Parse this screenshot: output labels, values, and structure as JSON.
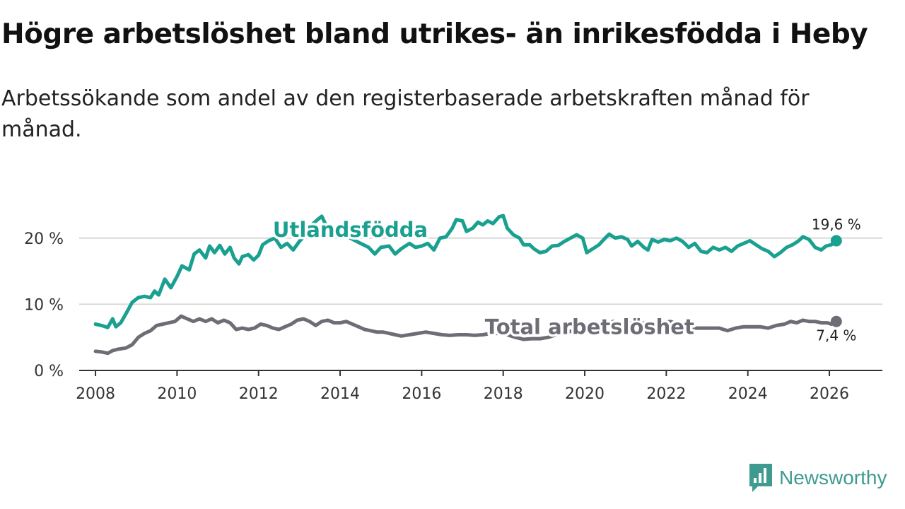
{
  "title": "Högre arbetslöshet bland utrikes- än inrikesfödda i Heby",
  "subtitle": "Arbetssökande som andel av den registerbaserade arbetskraften månad för månad.",
  "brand": {
    "name": "Newsworthy",
    "color": "#3f9b8f"
  },
  "chart_data": {
    "type": "line",
    "title": "Högre arbetslöshet bland utrikes- än inrikesfödda i Heby",
    "subtitle": "Arbetssökande som andel av den registerbaserade arbetskraften månad för månad.",
    "xlabel": "",
    "ylabel": "",
    "xlim": [
      2007.6,
      2027.3
    ],
    "ylim": [
      0,
      25
    ],
    "x_ticks": [
      2008,
      2010,
      2012,
      2014,
      2016,
      2018,
      2020,
      2022,
      2024,
      2026
    ],
    "x_tick_labels": [
      "2008",
      "2010",
      "2012",
      "2014",
      "2016",
      "2018",
      "2020",
      "2022",
      "2024",
      "2026"
    ],
    "y_ticks": [
      0,
      10,
      20
    ],
    "y_tick_labels": [
      "0 %",
      "10 %",
      "20 %"
    ],
    "grid": true,
    "series": [
      {
        "name": "Utlandsfödda",
        "color": "#1aa090",
        "end_label": "19,6 %",
        "points": [
          [
            2008.0,
            7.0
          ],
          [
            2008.15,
            6.8
          ],
          [
            2008.3,
            6.5
          ],
          [
            2008.42,
            7.8
          ],
          [
            2008.5,
            6.6
          ],
          [
            2008.62,
            7.2
          ],
          [
            2008.75,
            8.6
          ],
          [
            2008.9,
            10.3
          ],
          [
            2009.05,
            11.0
          ],
          [
            2009.2,
            11.2
          ],
          [
            2009.35,
            11.0
          ],
          [
            2009.45,
            12.0
          ],
          [
            2009.55,
            11.4
          ],
          [
            2009.7,
            13.8
          ],
          [
            2009.85,
            12.5
          ],
          [
            2010.0,
            14.2
          ],
          [
            2010.12,
            15.8
          ],
          [
            2010.3,
            15.2
          ],
          [
            2010.42,
            17.6
          ],
          [
            2010.55,
            18.2
          ],
          [
            2010.7,
            17.0
          ],
          [
            2010.8,
            18.8
          ],
          [
            2010.92,
            17.8
          ],
          [
            2011.05,
            18.9
          ],
          [
            2011.17,
            17.6
          ],
          [
            2011.3,
            18.6
          ],
          [
            2011.4,
            17.0
          ],
          [
            2011.52,
            16.1
          ],
          [
            2011.6,
            17.2
          ],
          [
            2011.75,
            17.5
          ],
          [
            2011.88,
            16.7
          ],
          [
            2012.0,
            17.4
          ],
          [
            2012.1,
            19.0
          ],
          [
            2012.25,
            19.6
          ],
          [
            2012.4,
            20.0
          ],
          [
            2012.55,
            18.6
          ],
          [
            2012.7,
            19.2
          ],
          [
            2012.85,
            18.2
          ],
          [
            2013.0,
            19.5
          ],
          [
            2013.15,
            20.5
          ],
          [
            2013.3,
            22.0
          ],
          [
            2013.45,
            22.8
          ],
          [
            2013.55,
            23.3
          ],
          [
            2013.65,
            22.0
          ],
          [
            2013.8,
            21.8
          ],
          [
            2013.95,
            20.4
          ],
          [
            2014.1,
            21.0
          ],
          [
            2014.25,
            20.0
          ],
          [
            2014.5,
            19.2
          ],
          [
            2014.7,
            18.6
          ],
          [
            2014.85,
            17.6
          ],
          [
            2015.0,
            18.6
          ],
          [
            2015.2,
            18.8
          ],
          [
            2015.35,
            17.6
          ],
          [
            2015.5,
            18.4
          ],
          [
            2015.7,
            19.2
          ],
          [
            2015.85,
            18.6
          ],
          [
            2016.0,
            18.8
          ],
          [
            2016.15,
            19.2
          ],
          [
            2016.3,
            18.2
          ],
          [
            2016.45,
            20.0
          ],
          [
            2016.6,
            20.2
          ],
          [
            2016.75,
            21.5
          ],
          [
            2016.85,
            22.8
          ],
          [
            2017.0,
            22.6
          ],
          [
            2017.1,
            21.0
          ],
          [
            2017.25,
            21.5
          ],
          [
            2017.38,
            22.4
          ],
          [
            2017.5,
            22.0
          ],
          [
            2017.62,
            22.6
          ],
          [
            2017.75,
            22.2
          ],
          [
            2017.9,
            23.2
          ],
          [
            2018.0,
            23.4
          ],
          [
            2018.1,
            21.5
          ],
          [
            2018.25,
            20.5
          ],
          [
            2018.4,
            20.0
          ],
          [
            2018.5,
            19.0
          ],
          [
            2018.65,
            19.0
          ],
          [
            2018.75,
            18.4
          ],
          [
            2018.9,
            17.8
          ],
          [
            2019.05,
            18.0
          ],
          [
            2019.2,
            18.8
          ],
          [
            2019.35,
            18.9
          ],
          [
            2019.5,
            19.5
          ],
          [
            2019.65,
            20.0
          ],
          [
            2019.8,
            20.5
          ],
          [
            2019.95,
            20.0
          ],
          [
            2020.05,
            17.8
          ],
          [
            2020.2,
            18.4
          ],
          [
            2020.35,
            19.0
          ],
          [
            2020.5,
            20.0
          ],
          [
            2020.6,
            20.6
          ],
          [
            2020.75,
            20.0
          ],
          [
            2020.9,
            20.2
          ],
          [
            2021.05,
            19.8
          ],
          [
            2021.15,
            18.8
          ],
          [
            2021.3,
            19.5
          ],
          [
            2021.45,
            18.6
          ],
          [
            2021.55,
            18.2
          ],
          [
            2021.65,
            19.8
          ],
          [
            2021.8,
            19.4
          ],
          [
            2021.95,
            19.8
          ],
          [
            2022.1,
            19.6
          ],
          [
            2022.25,
            20.0
          ],
          [
            2022.4,
            19.5
          ],
          [
            2022.55,
            18.6
          ],
          [
            2022.7,
            19.2
          ],
          [
            2022.85,
            18.0
          ],
          [
            2023.0,
            17.8
          ],
          [
            2023.15,
            18.6
          ],
          [
            2023.3,
            18.2
          ],
          [
            2023.45,
            18.6
          ],
          [
            2023.6,
            18.0
          ],
          [
            2023.75,
            18.8
          ],
          [
            2023.9,
            19.2
          ],
          [
            2024.05,
            19.6
          ],
          [
            2024.2,
            19.0
          ],
          [
            2024.35,
            18.4
          ],
          [
            2024.5,
            18.0
          ],
          [
            2024.65,
            17.2
          ],
          [
            2024.8,
            17.8
          ],
          [
            2024.95,
            18.6
          ],
          [
            2025.1,
            19.0
          ],
          [
            2025.25,
            19.6
          ],
          [
            2025.35,
            20.2
          ],
          [
            2025.5,
            19.8
          ],
          [
            2025.65,
            18.6
          ],
          [
            2025.8,
            18.2
          ],
          [
            2025.92,
            18.8
          ],
          [
            2026.05,
            19.0
          ],
          [
            2026.17,
            19.6
          ]
        ]
      },
      {
        "name": "Total arbetslöshet",
        "color": "#6e6d75",
        "end_label": "7,4 %",
        "points": [
          [
            2008.0,
            2.9
          ],
          [
            2008.15,
            2.8
          ],
          [
            2008.3,
            2.6
          ],
          [
            2008.42,
            3.0
          ],
          [
            2008.55,
            3.2
          ],
          [
            2008.75,
            3.4
          ],
          [
            2008.9,
            3.9
          ],
          [
            2009.05,
            5.0
          ],
          [
            2009.2,
            5.6
          ],
          [
            2009.35,
            6.0
          ],
          [
            2009.5,
            6.8
          ],
          [
            2009.65,
            7.0
          ],
          [
            2009.8,
            7.2
          ],
          [
            2009.95,
            7.4
          ],
          [
            2010.1,
            8.2
          ],
          [
            2010.25,
            7.8
          ],
          [
            2010.4,
            7.4
          ],
          [
            2010.55,
            7.8
          ],
          [
            2010.7,
            7.4
          ],
          [
            2010.85,
            7.8
          ],
          [
            2011.0,
            7.2
          ],
          [
            2011.15,
            7.6
          ],
          [
            2011.3,
            7.2
          ],
          [
            2011.45,
            6.2
          ],
          [
            2011.6,
            6.4
          ],
          [
            2011.75,
            6.2
          ],
          [
            2011.9,
            6.4
          ],
          [
            2012.05,
            7.0
          ],
          [
            2012.2,
            6.8
          ],
          [
            2012.35,
            6.4
          ],
          [
            2012.5,
            6.2
          ],
          [
            2012.65,
            6.6
          ],
          [
            2012.8,
            7.0
          ],
          [
            2012.95,
            7.6
          ],
          [
            2013.1,
            7.8
          ],
          [
            2013.25,
            7.4
          ],
          [
            2013.4,
            6.8
          ],
          [
            2013.55,
            7.4
          ],
          [
            2013.7,
            7.6
          ],
          [
            2013.85,
            7.2
          ],
          [
            2014.0,
            7.2
          ],
          [
            2014.15,
            7.4
          ],
          [
            2014.3,
            7.0
          ],
          [
            2014.45,
            6.6
          ],
          [
            2014.6,
            6.2
          ],
          [
            2014.75,
            6.0
          ],
          [
            2014.9,
            5.8
          ],
          [
            2015.05,
            5.8
          ],
          [
            2015.2,
            5.6
          ],
          [
            2015.35,
            5.4
          ],
          [
            2015.5,
            5.2
          ],
          [
            2015.7,
            5.4
          ],
          [
            2015.9,
            5.6
          ],
          [
            2016.1,
            5.8
          ],
          [
            2016.3,
            5.6
          ],
          [
            2016.5,
            5.4
          ],
          [
            2016.7,
            5.3
          ],
          [
            2016.9,
            5.4
          ],
          [
            2017.1,
            5.4
          ],
          [
            2017.3,
            5.3
          ],
          [
            2017.5,
            5.4
          ],
          [
            2017.7,
            5.6
          ],
          [
            2017.9,
            5.6
          ],
          [
            2018.1,
            5.4
          ],
          [
            2018.3,
            5.0
          ],
          [
            2018.5,
            4.7
          ],
          [
            2018.7,
            4.8
          ],
          [
            2018.9,
            4.8
          ],
          [
            2019.1,
            5.0
          ],
          [
            2019.3,
            5.4
          ],
          [
            2019.5,
            5.6
          ],
          [
            2019.7,
            6.0
          ],
          [
            2019.9,
            6.4
          ],
          [
            2020.1,
            6.8
          ],
          [
            2020.3,
            7.2
          ],
          [
            2020.5,
            7.0
          ],
          [
            2020.7,
            7.4
          ],
          [
            2020.9,
            7.0
          ],
          [
            2021.1,
            7.2
          ],
          [
            2021.3,
            7.0
          ],
          [
            2021.5,
            7.2
          ],
          [
            2021.7,
            7.0
          ],
          [
            2021.9,
            7.2
          ],
          [
            2022.1,
            7.4
          ],
          [
            2022.3,
            7.0
          ],
          [
            2022.5,
            6.6
          ],
          [
            2022.7,
            6.4
          ],
          [
            2022.9,
            6.4
          ],
          [
            2023.1,
            6.4
          ],
          [
            2023.3,
            6.4
          ],
          [
            2023.5,
            6.0
          ],
          [
            2023.7,
            6.4
          ],
          [
            2023.9,
            6.6
          ],
          [
            2024.1,
            6.6
          ],
          [
            2024.3,
            6.6
          ],
          [
            2024.5,
            6.4
          ],
          [
            2024.7,
            6.8
          ],
          [
            2024.9,
            7.0
          ],
          [
            2025.05,
            7.4
          ],
          [
            2025.2,
            7.2
          ],
          [
            2025.35,
            7.6
          ],
          [
            2025.5,
            7.4
          ],
          [
            2025.65,
            7.4
          ],
          [
            2025.8,
            7.2
          ],
          [
            2025.95,
            7.2
          ],
          [
            2026.05,
            7.0
          ],
          [
            2026.17,
            7.4
          ]
        ]
      }
    ]
  }
}
